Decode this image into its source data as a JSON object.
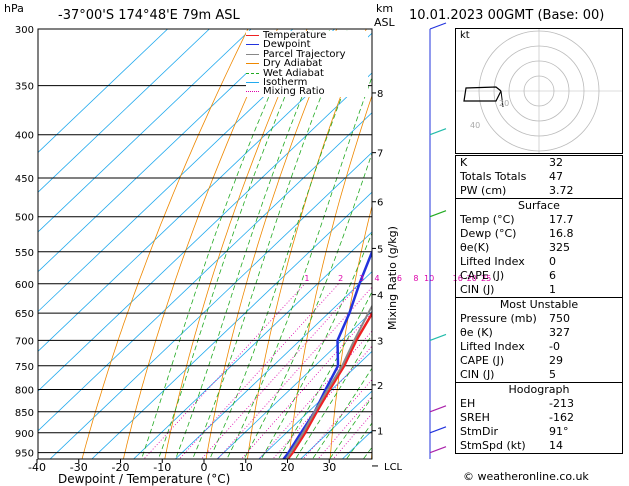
{
  "header": {
    "hpa_label": "hPa",
    "location": "-37°00'S  174°48'E  79m  ASL",
    "km_label": "km",
    "asl_label": "ASL",
    "date": "10.01.2023  00GMT  (Base: 00)"
  },
  "colors": {
    "temperature": "#ee2222",
    "dewpoint": "#2233dd",
    "parcel": "#888888",
    "dry_adiabat": "#ee8800",
    "wet_adiabat": "#22aa22",
    "isotherm": "#22aaee",
    "mixing_ratio": "#dd00aa"
  },
  "chart_data": {
    "type": "line",
    "title": "",
    "xlabel": "Dewpoint / Temperature (°C)",
    "ylabel": "Mixing Ratio (g/kg)",
    "x_ticks": [
      -40,
      -30,
      -20,
      -10,
      0,
      10,
      20,
      30
    ],
    "xlim": [
      -40,
      40
    ],
    "pressure_levels": [
      300,
      350,
      400,
      450,
      500,
      550,
      600,
      650,
      700,
      750,
      800,
      850,
      900,
      950
    ],
    "ylim": [
      1000,
      300
    ],
    "km_ticks": [
      {
        "label": "8",
        "p": 357
      },
      {
        "label": "7",
        "p": 420
      },
      {
        "label": "6",
        "p": 480
      },
      {
        "label": "5",
        "p": 545
      },
      {
        "label": "4",
        "p": 618
      },
      {
        "label": "3",
        "p": 700
      },
      {
        "label": "2",
        "p": 790
      },
      {
        "label": "1",
        "p": 895
      }
    ],
    "lcl": {
      "label": "LCL",
      "p": 985
    },
    "mixing_ratio_labels": [
      "1",
      "2",
      "3",
      "4",
      "6",
      "8",
      "10",
      "16",
      "20",
      "25"
    ],
    "mixing_ratio_values": [
      1,
      2,
      3,
      4,
      6,
      8,
      10,
      16,
      20,
      25
    ],
    "legend": [
      "Temperature",
      "Dewpoint",
      "Parcel Trajectory",
      "Dry Adiabat",
      "Wet Adiabat",
      "Isotherm",
      "Mixing Ratio"
    ],
    "legend_position": "top-left",
    "series": [
      {
        "name": "Temperature",
        "points": [
          [
            1000,
            17.7
          ],
          [
            950,
            16.5
          ],
          [
            900,
            14.5
          ],
          [
            850,
            12.0
          ],
          [
            800,
            9.5
          ],
          [
            750,
            7.0
          ],
          [
            700,
            3.5
          ],
          [
            650,
            0.5
          ],
          [
            600,
            -2.5
          ],
          [
            550,
            -6.0
          ],
          [
            500,
            -10.0
          ],
          [
            450,
            -15.5
          ],
          [
            400,
            -23.0
          ],
          [
            350,
            -31.0
          ],
          [
            300,
            -39.0
          ]
        ]
      },
      {
        "name": "Dewpoint",
        "points": [
          [
            1000,
            16.8
          ],
          [
            950,
            15.5
          ],
          [
            900,
            13.5
          ],
          [
            850,
            11.5
          ],
          [
            800,
            8.5
          ],
          [
            750,
            5.5
          ],
          [
            700,
            -1.0
          ],
          [
            650,
            -5.0
          ],
          [
            600,
            -10.0
          ],
          [
            550,
            -15.0
          ],
          [
            500,
            -13.5
          ],
          [
            450,
            -17.0
          ],
          [
            400,
            -26.0
          ],
          [
            350,
            -41.0
          ],
          [
            300,
            -52.0
          ]
        ]
      },
      {
        "name": "Parcel Trajectory",
        "points": [
          [
            1000,
            17.7
          ],
          [
            950,
            16.0
          ],
          [
            900,
            14.0
          ],
          [
            850,
            11.5
          ],
          [
            800,
            9.0
          ],
          [
            750,
            6.5
          ],
          [
            700,
            3.0
          ],
          [
            650,
            -0.5
          ],
          [
            600,
            -4.0
          ],
          [
            550,
            -8.0
          ],
          [
            500,
            -12.5
          ],
          [
            450,
            -17.5
          ],
          [
            400,
            -24.0
          ],
          [
            350,
            -32.0
          ],
          [
            300,
            -42.0
          ]
        ]
      }
    ]
  },
  "indices": {
    "top": [
      {
        "label": "K",
        "value": "32"
      },
      {
        "label": "Totals Totals",
        "value": "47"
      },
      {
        "label": "PW (cm)",
        "value": "3.72"
      }
    ],
    "surface": {
      "title": "Surface",
      "rows": [
        {
          "label": "Temp (°C)",
          "value": "17.7"
        },
        {
          "label": "Dewp (°C)",
          "value": "16.8"
        },
        {
          "label": "θe(K)",
          "value": "325"
        },
        {
          "label": "Lifted Index",
          "value": "0"
        },
        {
          "label": "CAPE (J)",
          "value": "6"
        },
        {
          "label": "CIN (J)",
          "value": "1"
        }
      ]
    },
    "most_unstable": {
      "title": "Most Unstable",
      "rows": [
        {
          "label": "Pressure (mb)",
          "value": "750"
        },
        {
          "label": "θe (K)",
          "value": "327"
        },
        {
          "label": "Lifted Index",
          "value": "-0"
        },
        {
          "label": "CAPE (J)",
          "value": "29"
        },
        {
          "label": "CIN (J)",
          "value": "5"
        }
      ]
    },
    "hodograph": {
      "title": "Hodograph",
      "rows": [
        {
          "label": "EH",
          "value": "-213"
        },
        {
          "label": "SREH",
          "value": "-162"
        },
        {
          "label": "StmDir",
          "value": "91°"
        },
        {
          "label": "StmSpd (kt)",
          "value": "14"
        }
      ]
    }
  },
  "hodo_panel": {
    "unit_label": "kt",
    "ring_labels": [
      "20",
      "40"
    ]
  },
  "footer": "© weatheronline.co.uk"
}
